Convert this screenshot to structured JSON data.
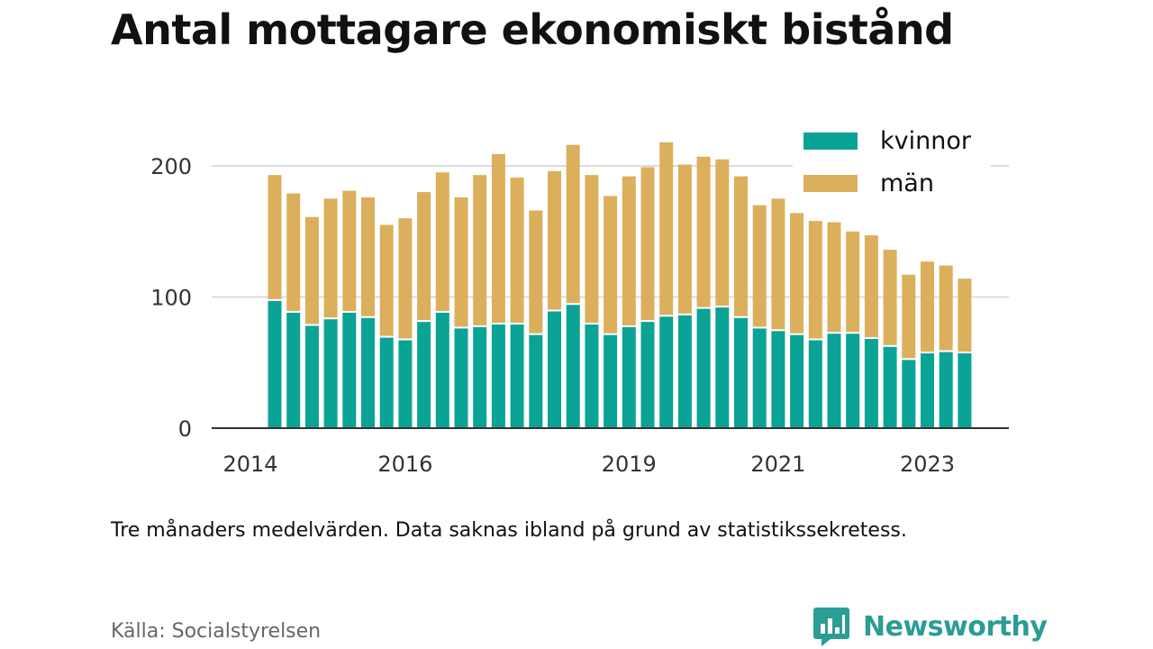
{
  "title": "Antal mottagare ekonomiskt bistånd",
  "note": "Tre månaders medelvärden. Data saknas ibland på grund av statistikssekretess.",
  "source": "Källa: Socialstyrelsen",
  "brand": {
    "name": "Newsworthy",
    "icon": "newsworthy-logo-icon",
    "color": "#2a9d94"
  },
  "chart_data": {
    "type": "bar",
    "stacked": true,
    "x_tick_labels": [
      "2014",
      "2016",
      "2019",
      "2021",
      "2023"
    ],
    "x_ticks_at_bar": [
      null,
      7,
      19,
      27,
      35
    ],
    "y_ticks": [
      0,
      100,
      200
    ],
    "ylim": [
      0,
      240
    ],
    "grid": true,
    "legend_position": "top-right",
    "series": [
      {
        "name": "kvinnor",
        "color": "#0aa396",
        "values": [
          97,
          88,
          78,
          83,
          88,
          84,
          69,
          67,
          81,
          88,
          76,
          77,
          79,
          79,
          71,
          89,
          94,
          79,
          71,
          77,
          81,
          85,
          86,
          91,
          92,
          84,
          76,
          74,
          71,
          67,
          72,
          72,
          68,
          62,
          52,
          57,
          58,
          57
        ]
      },
      {
        "name": "män",
        "color": "#dbaf5c",
        "values": [
          96,
          91,
          83,
          92,
          93,
          92,
          86,
          93,
          99,
          107,
          100,
          116,
          130,
          112,
          95,
          107,
          122,
          114,
          106,
          115,
          118,
          133,
          115,
          116,
          113,
          108,
          94,
          101,
          93,
          91,
          85,
          78,
          79,
          74,
          65,
          70,
          66,
          57
        ]
      }
    ]
  }
}
